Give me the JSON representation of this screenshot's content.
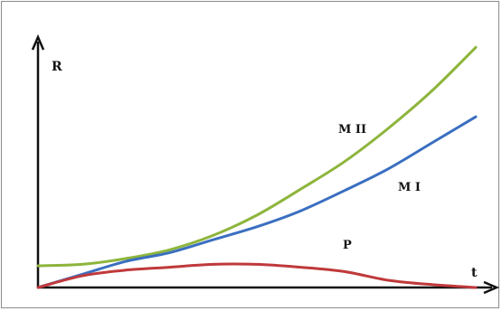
{
  "chart_data": {
    "type": "line",
    "ylabel": "R",
    "xlabel": "t",
    "grid": false,
    "legend": "none",
    "x": [
      0,
      1,
      2,
      3,
      4,
      5,
      6,
      7,
      8,
      9,
      10
    ],
    "series": [
      {
        "name": "M II",
        "color": "#8db53c",
        "values": [
          0.15,
          0.16,
          0.2,
          0.26,
          0.36,
          0.5,
          0.68,
          0.87,
          1.1,
          1.36,
          1.66
        ]
      },
      {
        "name": "M I",
        "color": "#3a6fc0",
        "values": [
          0,
          0.09,
          0.18,
          0.24,
          0.33,
          0.42,
          0.53,
          0.67,
          0.82,
          1.0,
          1.18
        ]
      },
      {
        "name": "P",
        "color": "#c0393b",
        "values": [
          0,
          0.08,
          0.12,
          0.14,
          0.16,
          0.16,
          0.14,
          0.11,
          0.05,
          0.02,
          0
        ]
      }
    ]
  }
}
